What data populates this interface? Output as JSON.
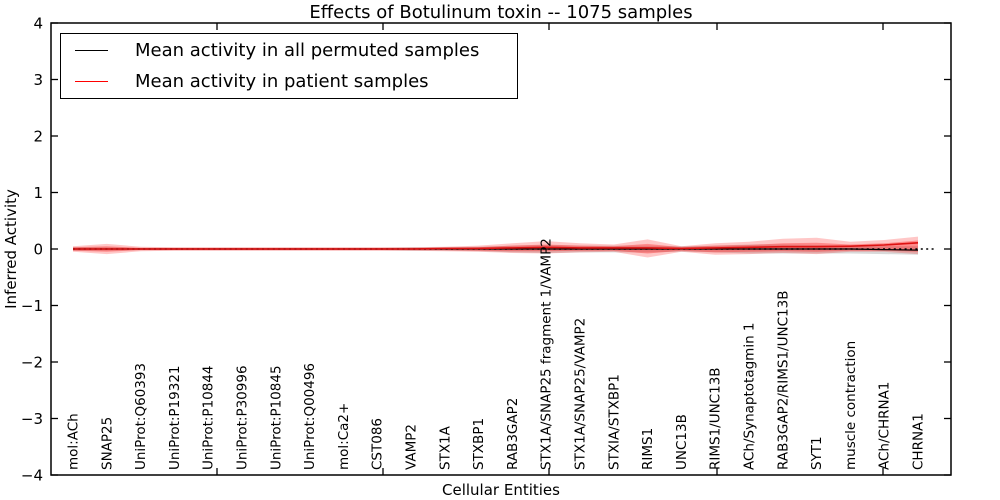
{
  "title": "Effects of Botulinum toxin -- 1075 samples",
  "axes": {
    "ylabel": "Inferred Activity",
    "xlabel": "Cellular Entities",
    "ytick_labels": [
      "4",
      "3",
      "2",
      "1",
      "0",
      "−1",
      "−2",
      "−3",
      "−4"
    ]
  },
  "legend": {
    "entries": [
      {
        "label": "Mean activity in all permuted samples",
        "color": "#000000"
      },
      {
        "label": "Mean activity in patient samples",
        "color": "#ff0000"
      }
    ]
  },
  "chart_data": {
    "type": "line",
    "title": "Effects of Botulinum toxin -- 1075 samples",
    "xlabel": "Cellular Entities",
    "ylabel": "Inferred Activity",
    "ylim": [
      -4,
      4
    ],
    "yticks": [
      4,
      3,
      2,
      1,
      0,
      -1,
      -2,
      -3,
      -4
    ],
    "grid": false,
    "legend_position": "upper-left",
    "categories": [
      "mol:ACh",
      "SNAP25",
      "UniProt:Q60393",
      "UniProt:P19321",
      "UniProt:P10844",
      "UniProt:P30996",
      "UniProt:P10845",
      "UniProt:Q00496",
      "mol:Ca2+",
      "CST086",
      "VAMP2",
      "STX1A",
      "STXBP1",
      "RAB3GAP2",
      "STX1A/SNAP25 fragment 1/VAMP2",
      "STX1A/SNAP25/VAMP2",
      "STXIA/STXBP1",
      "RIMS1",
      "UNC13B",
      "RIMS1/UNC13B",
      "ACh/Synaptotagmin 1",
      "RAB3GAP2/RIMS1/UNC13B",
      "SYT1",
      "muscle contraction",
      "ACh/CHRNA1",
      "CHRNA1"
    ],
    "series": [
      {
        "name": "Mean activity in all permuted samples",
        "color": "#000000",
        "style": "solid",
        "values": [
          0,
          0,
          0,
          0,
          0,
          0,
          0,
          0,
          0,
          0,
          0,
          0,
          0,
          0,
          0,
          0,
          0,
          0,
          0,
          0,
          0,
          0,
          0,
          0,
          -0.01,
          -0.02
        ]
      },
      {
        "name": "Mean activity in patient samples",
        "color": "#dd1111",
        "style": "solid",
        "values": [
          0,
          0,
          0,
          0,
          0,
          0,
          0,
          0,
          0,
          0,
          0,
          0.01,
          0.01,
          0.02,
          0.03,
          0.02,
          0.02,
          0.02,
          0.01,
          0.02,
          0.03,
          0.04,
          0.04,
          0.05,
          0.07,
          0.11
        ]
      }
    ],
    "zero_line": {
      "value": 0,
      "style": "dotted",
      "color": "#000000"
    },
    "bands": [
      {
        "name": "permuted-samples-band",
        "color": "#808080",
        "opacity": 0.3,
        "upper": [
          0.03,
          0.03,
          0.02,
          0.02,
          0.02,
          0.02,
          0.02,
          0.02,
          0.02,
          0.02,
          0.03,
          0.03,
          0.04,
          0.06,
          0.07,
          0.06,
          0.06,
          0.06,
          0.05,
          0.06,
          0.08,
          0.08,
          0.07,
          0.06,
          0.05,
          0.05
        ],
        "lower": [
          -0.03,
          -0.03,
          -0.02,
          -0.02,
          -0.02,
          -0.02,
          -0.02,
          -0.02,
          -0.02,
          -0.02,
          -0.03,
          -0.03,
          -0.04,
          -0.06,
          -0.07,
          -0.06,
          -0.06,
          -0.06,
          -0.05,
          -0.06,
          -0.08,
          -0.08,
          -0.08,
          -0.08,
          -0.09,
          -0.1
        ]
      },
      {
        "name": "patient-samples-band-outer",
        "color": "#ff0000",
        "opacity": 0.22,
        "upper": [
          0.05,
          0.09,
          0.04,
          0.03,
          0.03,
          0.03,
          0.03,
          0.03,
          0.03,
          0.03,
          0.03,
          0.04,
          0.06,
          0.1,
          0.14,
          0.1,
          0.08,
          0.17,
          0.05,
          0.1,
          0.13,
          0.18,
          0.2,
          0.13,
          0.16,
          0.22
        ],
        "lower": [
          -0.05,
          -0.09,
          -0.04,
          -0.03,
          -0.03,
          -0.03,
          -0.03,
          -0.03,
          -0.03,
          -0.03,
          -0.03,
          -0.04,
          -0.05,
          -0.07,
          -0.08,
          -0.06,
          -0.05,
          -0.15,
          -0.05,
          -0.1,
          -0.09,
          -0.07,
          -0.09,
          -0.05,
          -0.05,
          -0.09
        ]
      },
      {
        "name": "patient-samples-band-inner",
        "color": "#ff0000",
        "opacity": 0.3,
        "upper": [
          0.03,
          0.05,
          0.02,
          0.02,
          0.02,
          0.02,
          0.02,
          0.02,
          0.02,
          0.02,
          0.02,
          0.02,
          0.03,
          0.06,
          0.08,
          0.06,
          0.05,
          0.09,
          0.03,
          0.06,
          0.07,
          0.1,
          0.11,
          0.08,
          0.1,
          0.15
        ],
        "lower": [
          -0.03,
          -0.05,
          -0.02,
          -0.02,
          -0.02,
          -0.02,
          -0.02,
          -0.02,
          -0.02,
          -0.02,
          -0.02,
          -0.02,
          -0.03,
          -0.04,
          -0.04,
          -0.03,
          -0.03,
          -0.08,
          -0.03,
          -0.06,
          -0.05,
          -0.04,
          -0.05,
          -0.03,
          -0.03,
          -0.05
        ]
      }
    ]
  }
}
